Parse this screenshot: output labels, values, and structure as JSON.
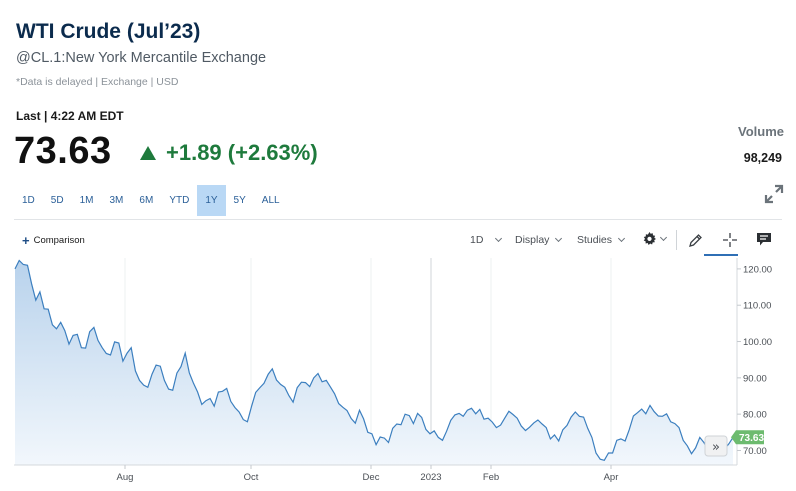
{
  "header": {
    "title": "WTI Crude (Jul’23)",
    "subtitle": "@CL.1:New York Mercantile Exchange",
    "disclaimer": "*Data is delayed | Exchange | USD",
    "last_label": "Last | 4:22 AM EDT",
    "price": "73.63",
    "change": "+1.89 (+2.63%)",
    "volume_label": "Volume",
    "volume_value": "98,249"
  },
  "colors": {
    "up": "#1e7a3c",
    "line": "#3c7fbf",
    "area_top": "#b8d2ec",
    "area_bottom": "#f2f7fc",
    "last_badge": "#6dbb6f",
    "accent": "#2f6fb5"
  },
  "ranges": [
    "1D",
    "5D",
    "1M",
    "3M",
    "6M",
    "YTD",
    "1Y",
    "5Y",
    "ALL"
  ],
  "active_range": "1Y",
  "toolbar": {
    "comparison": "Comparison",
    "interval": "1D",
    "display": "Display",
    "studies": "Studies"
  },
  "icons": [
    "triangle-up-icon",
    "expand-icon",
    "plus-icon",
    "gear-icon",
    "pencil-icon",
    "crosshair-icon",
    "comment-icon",
    "double-chevron-right-icon"
  ],
  "chart_data": {
    "type": "area",
    "x_labels": [
      "Aug",
      "Oct",
      "Dec",
      "2023",
      "Feb",
      "Apr"
    ],
    "y_ticks": [
      "120.00",
      "110.00",
      "100.00",
      "90.00",
      "80.00",
      "70.00"
    ],
    "ylim": [
      66,
      123
    ],
    "last_value": "73.63",
    "grid": "vertical",
    "series": [
      {
        "values": [
          120.0,
          122.3,
          121.2,
          121.0,
          115.9,
          111.4,
          113.7,
          109.0,
          108.9,
          104.6,
          103.5,
          105.3,
          103.0,
          99.3,
          101.7,
          102.0,
          98.3,
          98.2,
          102.7,
          103.9,
          100.3,
          98.3,
          96.7,
          96.3,
          99.9,
          99.6,
          94.6,
          96.8,
          98.3,
          91.9,
          89.3,
          88.0,
          87.4,
          91.0,
          93.5,
          93.2,
          89.3,
          86.9,
          86.6,
          91.3,
          93.1,
          96.8,
          91.4,
          88.5,
          86.1,
          82.7,
          83.7,
          84.3,
          82.2,
          86.1,
          86.3,
          87.1,
          83.5,
          81.8,
          80.6,
          78.5,
          77.9,
          82.2,
          86.0,
          87.3,
          88.5,
          91.0,
          92.5,
          89.4,
          88.2,
          87.4,
          85.1,
          83.3,
          87.3,
          88.8,
          88.7,
          87.6,
          90.0,
          91.2,
          88.9,
          89.3,
          87.5,
          85.6,
          82.9,
          81.9,
          81.0,
          78.8,
          77.5,
          81.1,
          78.7,
          75.0,
          74.6,
          71.6,
          73.7,
          73.4,
          72.2,
          76.1,
          77.3,
          77.1,
          80.0,
          79.6,
          77.4,
          80.2,
          79.1,
          75.8,
          74.6,
          75.4,
          73.6,
          72.8,
          75.3,
          78.3,
          79.8,
          80.2,
          79.4,
          81.1,
          81.6,
          80.1,
          81.3,
          78.6,
          78.9,
          77.8,
          76.3,
          77.0,
          78.9,
          80.8,
          79.9,
          78.9,
          76.7,
          75.5,
          76.4,
          77.6,
          78.4,
          77.3,
          76.3,
          73.2,
          74.3,
          72.6,
          75.7,
          76.9,
          79.2,
          80.6,
          79.4,
          79.2,
          76.1,
          73.6,
          69.3,
          67.6,
          67.3,
          69.3,
          69.3,
          72.8,
          73.2,
          72.6,
          75.7,
          79.5,
          80.4,
          81.4,
          80.1,
          82.4,
          80.7,
          79.5,
          79.4,
          80.1,
          77.9,
          77.4,
          76.3,
          72.8,
          71.3,
          69.1,
          70.7,
          73.6,
          72.2,
          70.0,
          71.9,
          71.3,
          72.4,
          70.4,
          71.8,
          73.6
        ]
      }
    ]
  }
}
